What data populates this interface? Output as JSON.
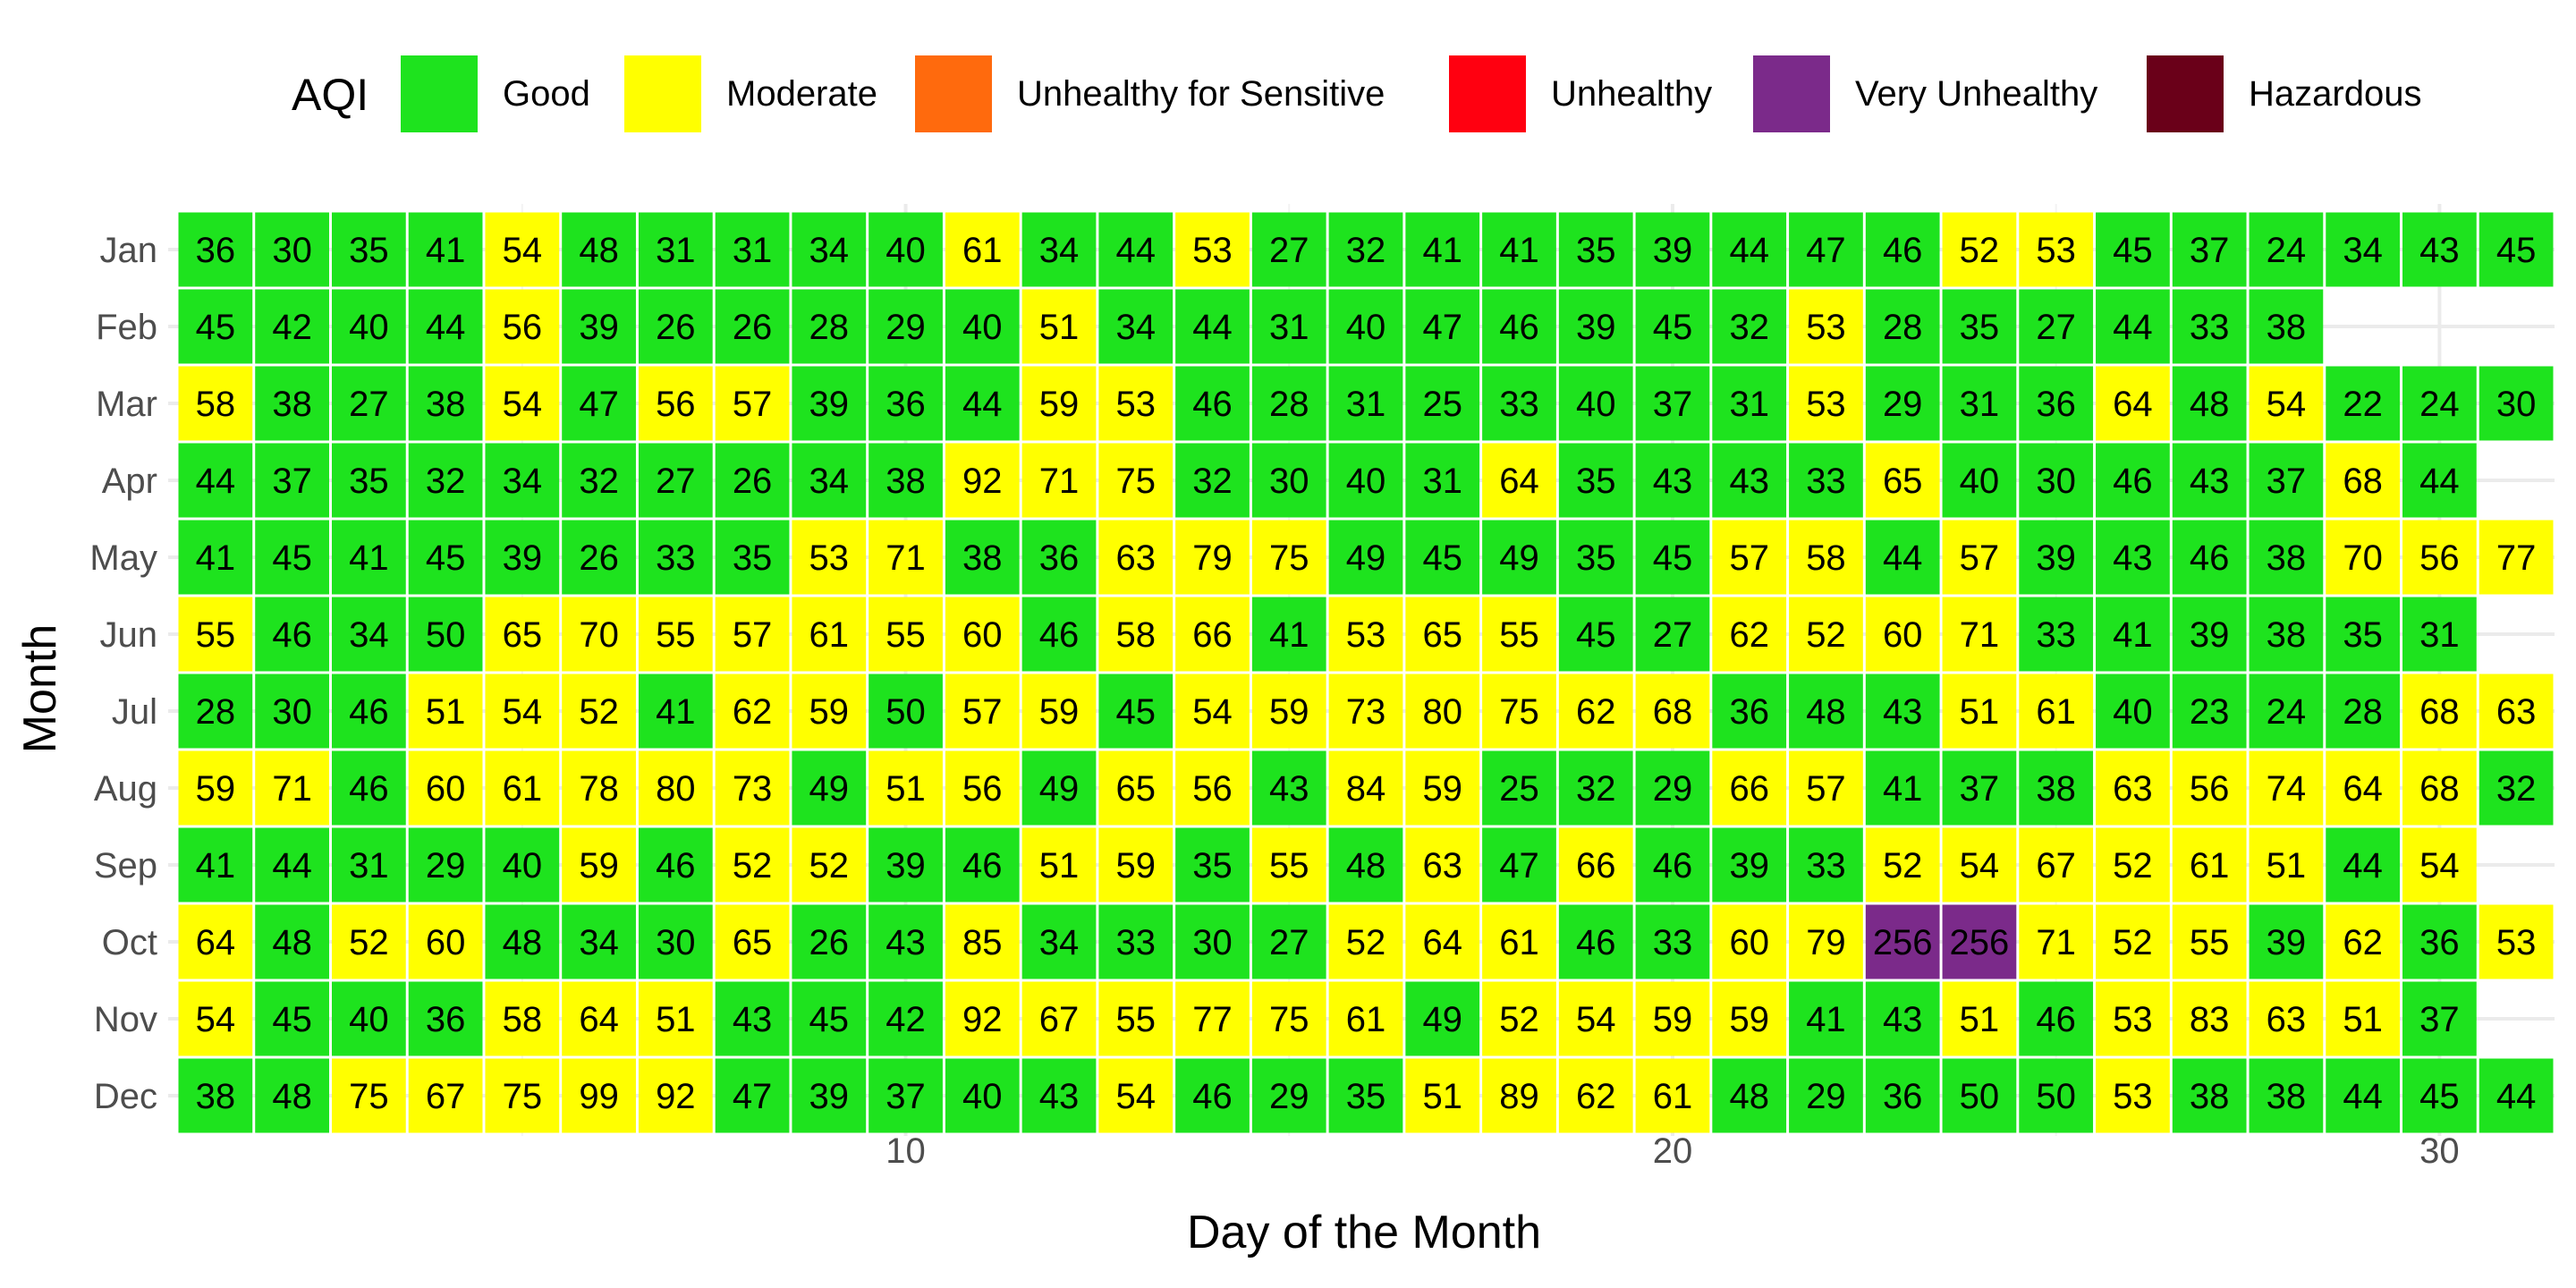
{
  "chart_data": {
    "type": "heatmap",
    "xlabel": "Day of the Month",
    "ylabel": "Month",
    "x_ticks": [
      10,
      20,
      30
    ],
    "xlim": [
      0.5,
      31.5
    ],
    "grid": true,
    "legend": {
      "title": "AQI",
      "position": "top",
      "entries": [
        {
          "label": "Good",
          "color": "#1ee31e"
        },
        {
          "label": "Moderate",
          "color": "#ffff00"
        },
        {
          "label": "Unhealthy for Sensitive",
          "color": "#ff6a0d"
        },
        {
          "label": "Unhealthy",
          "color": "#ff0010"
        },
        {
          "label": "Very Unhealthy",
          "color": "#7b2a8a"
        },
        {
          "label": "Hazardous",
          "color": "#6a0019"
        }
      ]
    },
    "months": [
      "Jan",
      "Feb",
      "Mar",
      "Apr",
      "May",
      "Jun",
      "Jul",
      "Aug",
      "Sep",
      "Oct",
      "Nov",
      "Dec"
    ],
    "values": [
      [
        36,
        30,
        35,
        41,
        54,
        48,
        31,
        31,
        34,
        40,
        61,
        34,
        44,
        53,
        27,
        32,
        41,
        41,
        35,
        39,
        44,
        47,
        46,
        52,
        53,
        45,
        37,
        24,
        34,
        43,
        45
      ],
      [
        45,
        42,
        40,
        44,
        56,
        39,
        26,
        26,
        28,
        29,
        40,
        51,
        34,
        44,
        31,
        40,
        47,
        46,
        39,
        45,
        32,
        53,
        28,
        35,
        27,
        44,
        33,
        38
      ],
      [
        58,
        38,
        27,
        38,
        54,
        47,
        56,
        57,
        39,
        36,
        44,
        59,
        53,
        46,
        28,
        31,
        25,
        33,
        40,
        37,
        31,
        53,
        29,
        31,
        36,
        64,
        48,
        54,
        22,
        24,
        30
      ],
      [
        44,
        37,
        35,
        32,
        34,
        32,
        27,
        26,
        34,
        38,
        92,
        71,
        75,
        32,
        30,
        40,
        31,
        64,
        35,
        43,
        43,
        33,
        65,
        40,
        30,
        46,
        43,
        37,
        68,
        44
      ],
      [
        41,
        45,
        41,
        45,
        39,
        26,
        33,
        35,
        53,
        71,
        38,
        36,
        63,
        79,
        75,
        49,
        45,
        49,
        35,
        45,
        57,
        58,
        44,
        57,
        39,
        43,
        46,
        38,
        70,
        56,
        77
      ],
      [
        55,
        46,
        34,
        50,
        65,
        70,
        55,
        57,
        61,
        55,
        60,
        46,
        58,
        66,
        41,
        53,
        65,
        55,
        45,
        27,
        62,
        52,
        60,
        71,
        33,
        41,
        39,
        38,
        35,
        31
      ],
      [
        28,
        30,
        46,
        51,
        54,
        52,
        41,
        62,
        59,
        50,
        57,
        59,
        45,
        54,
        59,
        73,
        80,
        75,
        62,
        68,
        36,
        48,
        43,
        51,
        61,
        40,
        23,
        24,
        28,
        68,
        63
      ],
      [
        59,
        71,
        46,
        60,
        61,
        78,
        80,
        73,
        49,
        51,
        56,
        49,
        65,
        56,
        43,
        84,
        59,
        25,
        32,
        29,
        66,
        57,
        41,
        37,
        38,
        63,
        56,
        74,
        64,
        68,
        32
      ],
      [
        41,
        44,
        31,
        29,
        40,
        59,
        46,
        52,
        52,
        39,
        46,
        51,
        59,
        35,
        55,
        48,
        63,
        47,
        66,
        46,
        39,
        33,
        52,
        54,
        67,
        52,
        61,
        51,
        44,
        54
      ],
      [
        64,
        48,
        52,
        60,
        48,
        34,
        30,
        65,
        26,
        43,
        85,
        34,
        33,
        30,
        27,
        52,
        64,
        61,
        46,
        33,
        60,
        79,
        256,
        256,
        71,
        52,
        55,
        39,
        62,
        36,
        53
      ],
      [
        54,
        45,
        40,
        36,
        58,
        64,
        51,
        43,
        45,
        42,
        92,
        67,
        55,
        77,
        75,
        61,
        49,
        52,
        54,
        59,
        59,
        41,
        43,
        51,
        46,
        53,
        83,
        63,
        51,
        37
      ],
      [
        38,
        48,
        75,
        67,
        75,
        99,
        92,
        47,
        39,
        37,
        40,
        43,
        54,
        46,
        29,
        35,
        51,
        89,
        62,
        61,
        48,
        29,
        36,
        50,
        50,
        53,
        38,
        38,
        44,
        45,
        44
      ]
    ]
  }
}
